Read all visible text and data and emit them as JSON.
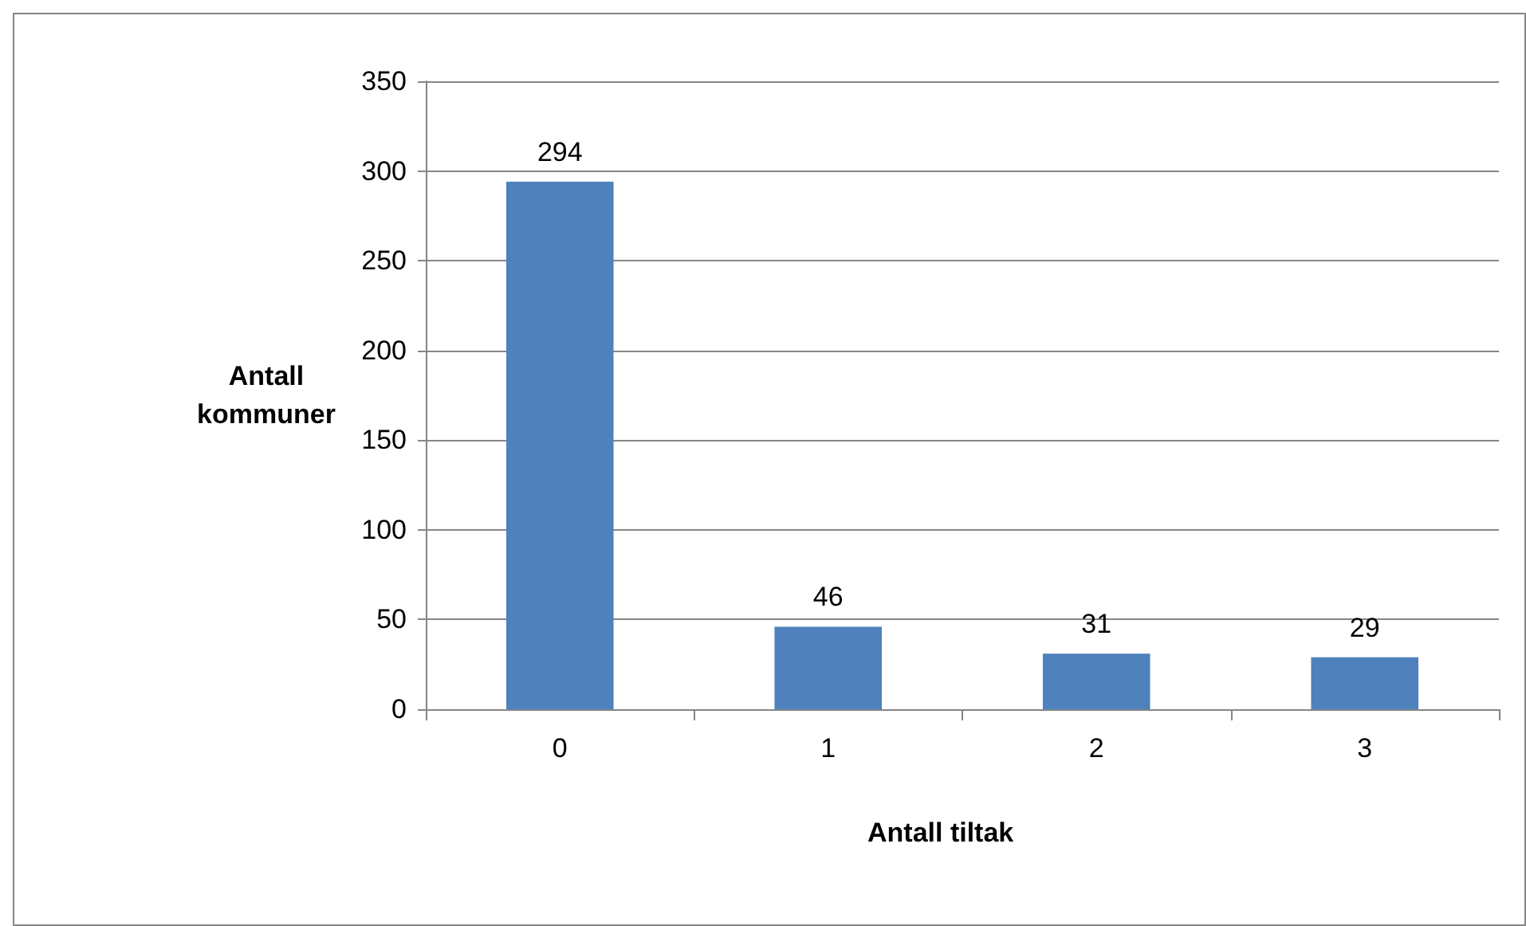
{
  "chart_data": {
    "type": "bar",
    "xlabel": "Antall tiltak",
    "ylabel": "Antall\nkommuner",
    "categories": [
      "0",
      "1",
      "2",
      "3"
    ],
    "values": [
      294,
      46,
      31,
      29
    ],
    "color": "#4f81bd",
    "ylim": [
      0,
      350
    ],
    "yticks": [
      0,
      50,
      100,
      150,
      200,
      250,
      300,
      350
    ],
    "grid": "y",
    "data_labels": true
  }
}
